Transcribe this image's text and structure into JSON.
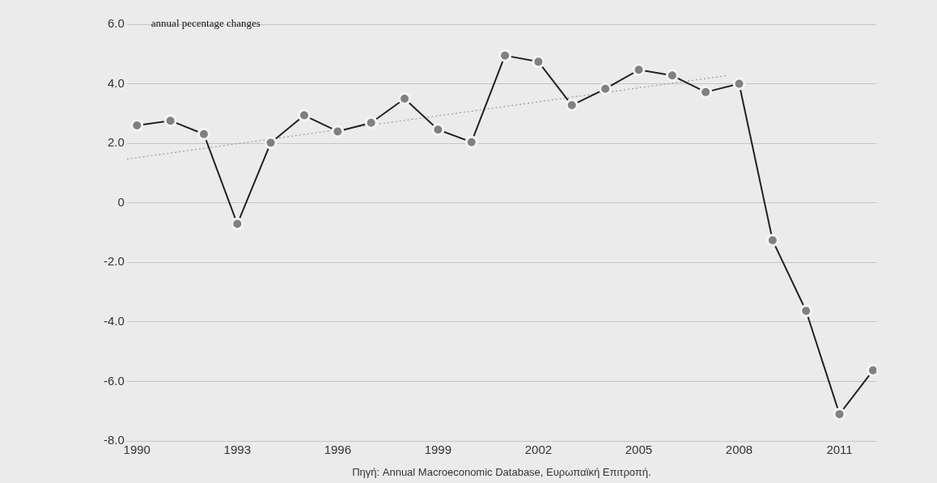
{
  "chart_data": {
    "type": "line",
    "title": "annual pecentage changes",
    "annotations": [
      "Πηγή: Annual Macroeconomic Database, Ευρωπαϊκή Επιτροπή."
    ],
    "series": [
      {
        "color": "#808080",
        "marker": "circle",
        "x": [
          1990,
          1991,
          1992,
          1993,
          1994,
          1995,
          1996,
          1997,
          1998,
          1999,
          2000,
          2001,
          2002,
          2003,
          2004,
          2005,
          2006,
          2007,
          2008,
          2009,
          2010,
          2011,
          2012
        ],
        "values": [
          2.6,
          2.76,
          2.31,
          -0.71,
          2.02,
          2.94,
          2.4,
          2.69,
          3.5,
          2.46,
          2.04,
          4.95,
          4.74,
          3.28,
          3.83,
          4.47,
          4.28,
          3.72,
          4.0,
          -1.26,
          -3.63,
          -7.1,
          -5.63
        ]
      },
      {
        "type": "line",
        "color": "#999999",
        "marker": "none",
        "line_style": "dotted",
        "x": [
          1989.7,
          2007.6
        ],
        "values": [
          1.47,
          4.27
        ]
      }
    ],
    "xlim": [
      1989.7,
      2012.1
    ],
    "xticks": [
      1990,
      1993,
      1996,
      1999,
      2002,
      2005,
      2008,
      2011
    ],
    "ylim": [
      -8,
      6
    ],
    "yticks": [
      {
        "value": -8,
        "label": "-8.0"
      },
      {
        "value": -6,
        "label": "-6.0"
      },
      {
        "value": -4,
        "label": "-4.0"
      },
      {
        "value": -2,
        "label": "-2.0"
      },
      0,
      {
        "value": 2,
        "label": "2.0"
      },
      {
        "value": 4,
        "label": "4.0"
      },
      {
        "value": 6,
        "label": "6.0"
      }
    ],
    "grid": "y"
  }
}
